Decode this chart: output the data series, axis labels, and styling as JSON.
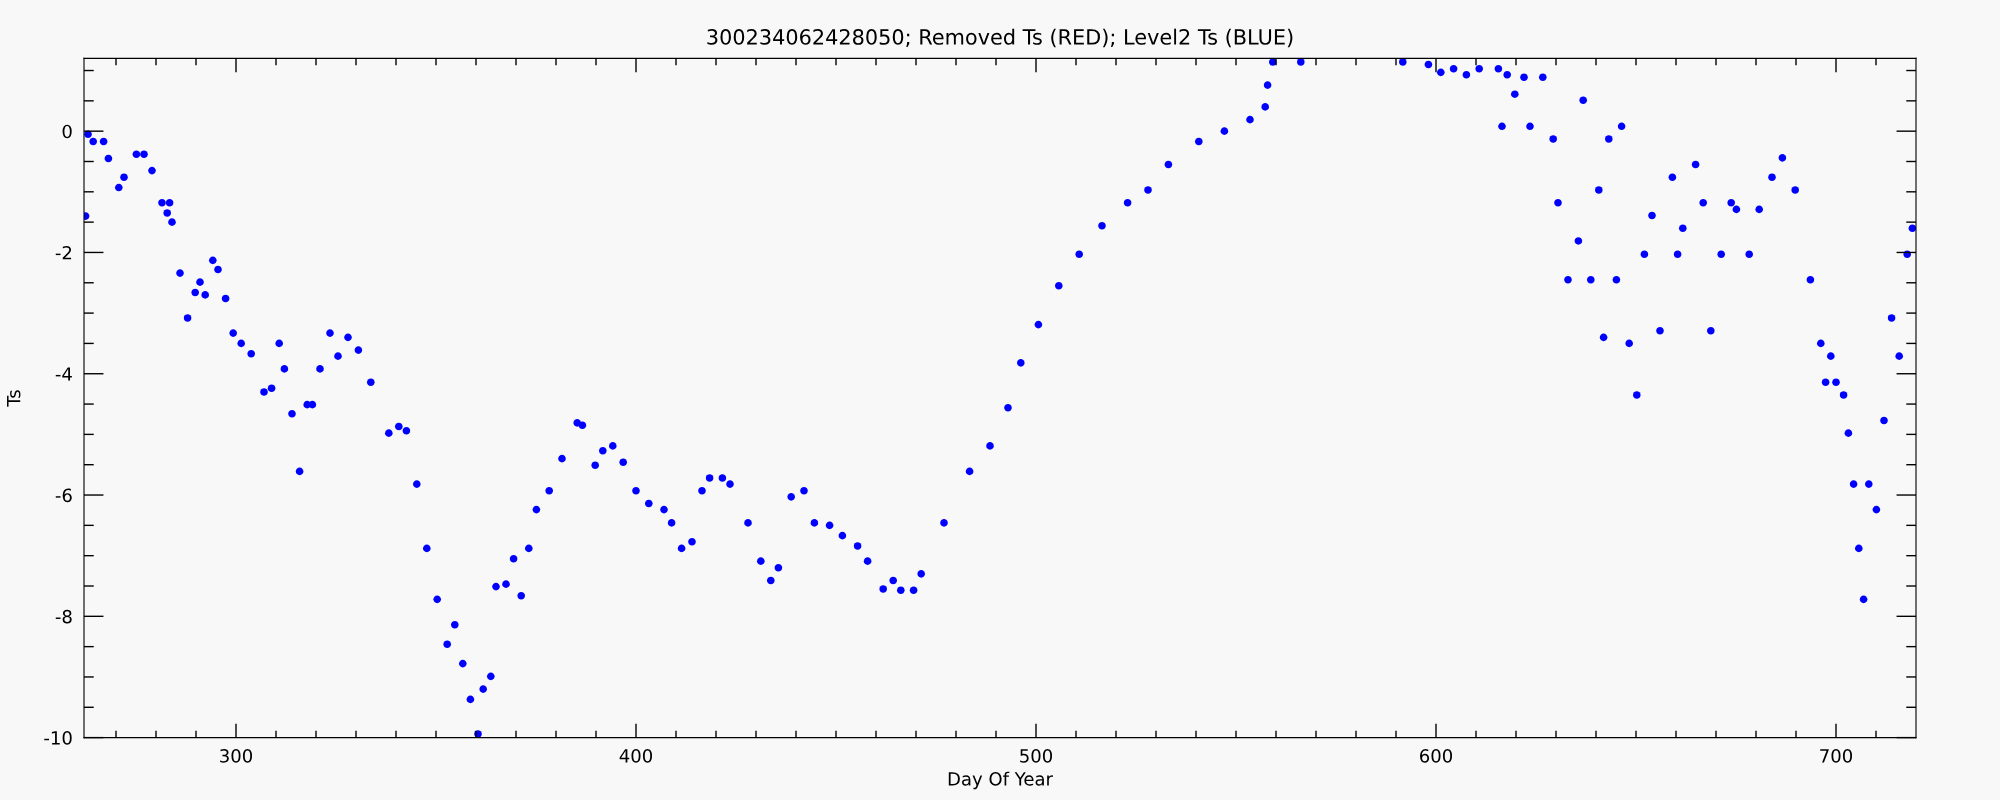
{
  "chart_data": {
    "type": "scatter",
    "title": "300234062428050; Removed Ts (RED); Level2 Ts (BLUE)",
    "xlabel": "Day Of Year",
    "ylabel": "Ts",
    "marker": "circle",
    "grid": false,
    "legend": false,
    "xlim": [
      262,
      720
    ],
    "ylim": [
      -10,
      1.2
    ],
    "xticks": [
      {
        "value": 270,
        "label": null
      },
      {
        "value": 280,
        "label": null
      },
      {
        "value": 290,
        "label": null
      },
      300,
      {
        "value": 310,
        "label": null
      },
      {
        "value": 320,
        "label": null
      },
      {
        "value": 330,
        "label": null
      },
      {
        "value": 340,
        "label": null
      },
      {
        "value": 350,
        "label": null
      },
      {
        "value": 360,
        "label": null
      },
      {
        "value": 370,
        "label": null
      },
      {
        "value": 380,
        "label": null
      },
      {
        "value": 390,
        "label": null
      },
      400,
      {
        "value": 410,
        "label": null
      },
      {
        "value": 420,
        "label": null
      },
      {
        "value": 430,
        "label": null
      },
      {
        "value": 440,
        "label": null
      },
      {
        "value": 450,
        "label": null
      },
      {
        "value": 460,
        "label": null
      },
      {
        "value": 470,
        "label": null
      },
      {
        "value": 480,
        "label": null
      },
      {
        "value": 490,
        "label": null
      },
      500,
      {
        "value": 510,
        "label": null
      },
      {
        "value": 520,
        "label": null
      },
      {
        "value": 530,
        "label": null
      },
      {
        "value": 540,
        "label": null
      },
      {
        "value": 550,
        "label": null
      },
      {
        "value": 560,
        "label": null
      },
      {
        "value": 570,
        "label": null
      },
      {
        "value": 580,
        "label": null
      },
      {
        "value": 590,
        "label": null
      },
      600,
      {
        "value": 610,
        "label": null
      },
      {
        "value": 620,
        "label": null
      },
      {
        "value": 630,
        "label": null
      },
      {
        "value": 640,
        "label": null
      },
      {
        "value": 650,
        "label": null
      },
      {
        "value": 660,
        "label": null
      },
      {
        "value": 670,
        "label": null
      },
      {
        "value": 680,
        "label": null
      },
      {
        "value": 690,
        "label": null
      },
      700,
      {
        "value": 710,
        "label": null
      }
    ],
    "yticks": [
      -10,
      {
        "value": -9.5,
        "label": null
      },
      {
        "value": -9,
        "label": null
      },
      {
        "value": -8.5,
        "label": null
      },
      -8,
      {
        "value": -7.5,
        "label": null
      },
      {
        "value": -7,
        "label": null
      },
      {
        "value": -6.5,
        "label": null
      },
      -6,
      {
        "value": -5.5,
        "label": null
      },
      {
        "value": -5,
        "label": null
      },
      {
        "value": -4.5,
        "label": null
      },
      -4,
      {
        "value": -3.5,
        "label": null
      },
      {
        "value": -3,
        "label": null
      },
      {
        "value": -2.5,
        "label": null
      },
      -2,
      {
        "value": -1.5,
        "label": null
      },
      {
        "value": -1,
        "label": null
      },
      {
        "value": -0.5,
        "label": null
      },
      0,
      {
        "value": 0.5,
        "label": null
      },
      {
        "value": 1,
        "label": null
      }
    ],
    "series": [
      {
        "color": "#0000ff",
        "x": [
          262.4,
          263,
          264.3,
          266.9,
          268.1,
          270.7,
          272,
          275.1,
          277,
          279,
          281.5,
          282.8,
          283.4,
          284,
          286,
          287.9,
          289.8,
          291,
          292.3,
          294.2,
          295.5,
          297.4,
          299.3,
          301.3,
          303.8,
          307,
          308.9,
          310.8,
          312.1,
          314,
          315.9,
          317.8,
          319.1,
          321,
          323.5,
          325.5,
          328,
          330.6,
          333.7,
          338.2,
          340.7,
          342.6,
          345.2,
          347.7,
          350.3,
          352.8,
          354.7,
          356.7,
          358.6,
          360.5,
          361.8,
          363.7,
          365,
          367.5,
          369.4,
          371.3,
          373.2,
          375.1,
          378.3,
          381.5,
          385.3,
          386.6,
          389.8,
          391.7,
          394.2,
          396.8,
          400,
          403.2,
          407,
          408.9,
          411.4,
          414,
          416.5,
          418.4,
          421.6,
          423.5,
          428,
          431.2,
          433.7,
          435.6,
          438.8,
          442,
          444.6,
          448.4,
          451.6,
          455.4,
          457.9,
          461.8,
          464.3,
          466.2,
          469.4,
          471.3,
          477,
          483.4,
          488.5,
          493,
          496.2,
          500.6,
          505.7,
          510.8,
          516.5,
          522.9,
          528,
          533.1,
          540.7,
          547.1,
          553.5,
          557.3,
          557.9,
          559.2,
          566.2,
          591.7,
          598.1,
          601.2,
          604.4,
          607.6,
          610.8,
          615.6,
          616.5,
          617.8,
          619.7,
          622,
          623.5,
          626.7,
          629.3,
          630.5,
          633,
          635.6,
          636.8,
          638.7,
          640.7,
          641.9,
          643.2,
          645.1,
          646.4,
          648.3,
          650.2,
          652.1,
          654,
          656,
          659.1,
          660.4,
          661.7,
          664.9,
          666.8,
          668.7,
          671.3,
          673.8,
          675.1,
          678.3,
          680.8,
          684,
          686.6,
          689.8,
          693.6,
          696.2,
          697.4,
          698.7,
          700,
          701.9,
          703.1,
          704.4,
          705.7,
          706.9,
          708.2,
          710.1,
          712,
          713.9,
          715.8,
          717.8,
          719.1
        ],
        "values": [
          -1.4,
          -0.05,
          -0.17,
          -0.17,
          -0.45,
          -0.93,
          -0.76,
          -0.38,
          -0.38,
          -0.65,
          -1.18,
          -1.35,
          -1.18,
          -1.5,
          -2.34,
          -3.08,
          -2.66,
          -2.49,
          -2.7,
          -2.13,
          -2.28,
          -2.76,
          -3.33,
          -3.5,
          -3.67,
          -4.3,
          -4.24,
          -3.5,
          -3.92,
          -4.66,
          -5.61,
          -4.51,
          -4.51,
          -3.92,
          -3.33,
          -3.71,
          -3.4,
          -3.61,
          -4.14,
          -4.98,
          -4.87,
          -4.94,
          -5.82,
          -6.88,
          -7.72,
          -8.46,
          -8.14,
          -8.78,
          -9.37,
          -9.94,
          -9.2,
          -8.99,
          -7.51,
          -7.47,
          -7.05,
          -7.66,
          -6.88,
          -6.24,
          -5.93,
          -5.4,
          -4.81,
          -4.85,
          -5.51,
          -5.27,
          -5.19,
          -5.46,
          -5.93,
          -6.14,
          -6.24,
          -6.46,
          -6.88,
          -6.77,
          -5.93,
          -5.72,
          -5.72,
          -5.82,
          -6.46,
          -7.09,
          -7.41,
          -7.2,
          -6.03,
          -5.93,
          -6.46,
          -6.5,
          -6.67,
          -6.84,
          -7.09,
          -7.55,
          -7.41,
          -7.57,
          -7.57,
          -7.3,
          -6.46,
          -5.61,
          -5.19,
          -4.56,
          -3.82,
          -3.19,
          -2.55,
          -2.03,
          -1.56,
          -1.18,
          -0.97,
          -0.55,
          -0.17,
          0,
          0.19,
          0.4,
          0.76,
          1.14,
          1.14,
          1.14,
          1.1,
          0.97,
          1.03,
          0.93,
          1.03,
          1.03,
          0.08,
          0.93,
          0.61,
          0.89,
          0.08,
          0.89,
          -0.13,
          -1.18,
          -2.45,
          -1.81,
          0.51,
          -2.45,
          -0.97,
          -3.4,
          -0.13,
          -2.45,
          0.08,
          -3.5,
          -4.35,
          -2.03,
          -1.39,
          -3.29,
          -0.76,
          -2.03,
          -1.6,
          -0.55,
          -1.18,
          -3.29,
          -2.03,
          -1.18,
          -1.29,
          -2.03,
          -1.29,
          -0.76,
          -0.44,
          -0.97,
          -2.45,
          -3.5,
          -4.14,
          -3.71,
          -4.14,
          -4.35,
          -4.98,
          -5.82,
          -6.88,
          -7.72,
          -5.82,
          -6.24,
          -4.77,
          -3.08,
          -3.71,
          -2.03,
          -1.6
        ]
      }
    ]
  }
}
